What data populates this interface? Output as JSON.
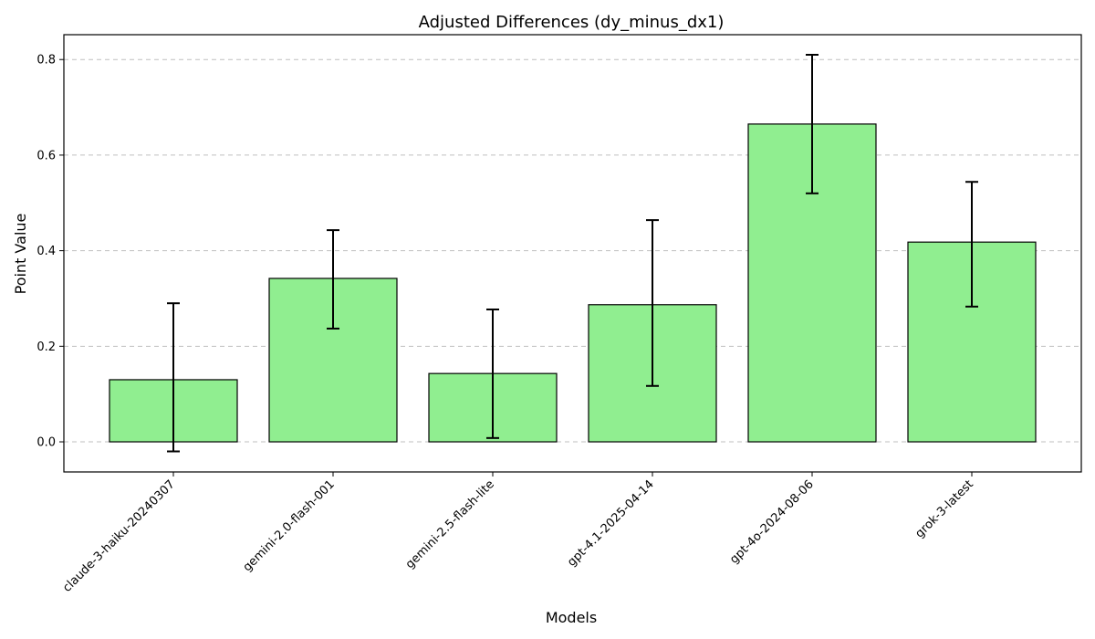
{
  "chart_data": {
    "type": "bar",
    "title": "Adjusted Differences (dy_minus_dx1)",
    "xlabel": "Models",
    "ylabel": "Point Value",
    "categories": [
      "claude-3-haiku-20240307",
      "gemini-2.0-flash-001",
      "gemini-2.5-flash-lite",
      "gpt-4.1-2025-04-14",
      "gpt-4o-2024-08-06",
      "grok-3-latest"
    ],
    "series": [
      {
        "values": [
          0.13,
          0.342,
          0.143,
          0.287,
          0.665,
          0.418
        ],
        "error_low": [
          -0.02,
          0.237,
          0.008,
          0.117,
          0.52,
          0.283
        ],
        "error_high": [
          0.29,
          0.443,
          0.277,
          0.464,
          0.81,
          0.544
        ]
      }
    ],
    "ylim": [
      -0.063,
      0.852
    ],
    "yticks": [
      0.0,
      0.2,
      0.4,
      0.6,
      0.8
    ],
    "ytick_labels": [
      "0.0",
      "0.2",
      "0.4",
      "0.6",
      "0.8"
    ],
    "grid": "y-dashed",
    "bar_color": "#90EE90",
    "edge_color": "#000000"
  }
}
